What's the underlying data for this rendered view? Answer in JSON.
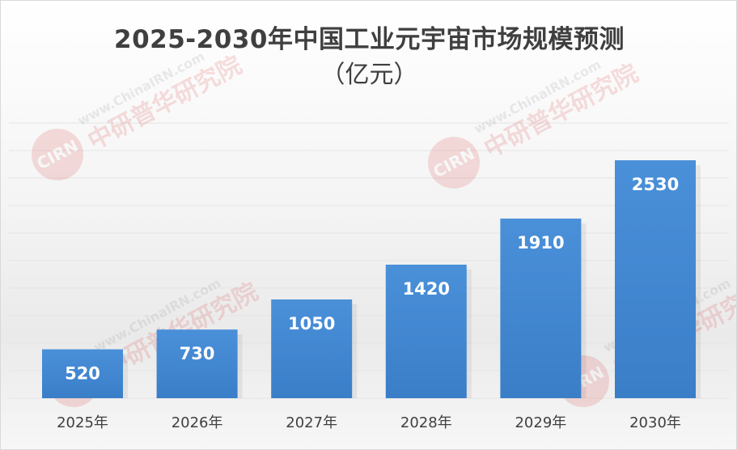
{
  "chart_data": {
    "type": "bar",
    "title": "2025-2030年中国工业元宇宙市场规模预测",
    "subtitle": "（亿元）",
    "categories": [
      "2025年",
      "2026年",
      "2027年",
      "2028年",
      "2029年",
      "2030年"
    ],
    "values": [
      520,
      730,
      1050,
      1420,
      1910,
      2530
    ],
    "ylim": [
      0,
      2700
    ],
    "grid": true,
    "legend": "none",
    "bar_color": "#4a90d9",
    "bar_color_dark": "#3a7ec8",
    "label_color": "#ffffff",
    "axis_label_color": "#404040"
  },
  "watermark": {
    "brand": "CIRN",
    "site": "www.ChinaIRN.com",
    "org": "中研普华研究院"
  }
}
